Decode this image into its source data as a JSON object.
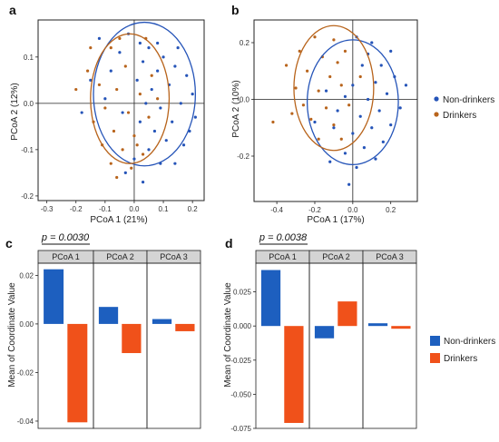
{
  "colors": {
    "nondrinker_point": "#2554b8",
    "drinker_point": "#b8641c",
    "nondrinker_bar": "#1d5fbf",
    "drinker_bar": "#f0511a",
    "panel_header_bg": "#d4d4d4"
  },
  "legends": {
    "top": [
      {
        "label": "Non-drinkers",
        "color_key": "nondrinker_point",
        "shape": "dot"
      },
      {
        "label": "Drinkers",
        "color_key": "drinker_point",
        "shape": "dot"
      }
    ],
    "bottom": [
      {
        "label": "Non-drinkers",
        "color_key": "nondrinker_bar",
        "shape": "square"
      },
      {
        "label": "Drinkers",
        "color_key": "drinker_bar",
        "shape": "square"
      }
    ]
  },
  "chart_data": [
    {
      "panel": "a",
      "type": "scatter",
      "xlabel": "PCoA 1 (21%)",
      "ylabel": "PCoA 2 (12%)",
      "xlim": [
        -0.33,
        0.24
      ],
      "ylim": [
        -0.21,
        0.18
      ],
      "xticks": [
        -0.3,
        -0.2,
        -0.1,
        0.0,
        0.1,
        0.2
      ],
      "xtick_labels": [
        "-0.3",
        "-0.2",
        "-0.1",
        "0.0",
        "0.1",
        "0.2"
      ],
      "yticks": [
        -0.2,
        -0.1,
        0.0,
        0.1
      ],
      "ytick_labels": [
        "-0.2",
        "-0.1",
        "0.0",
        "0.1"
      ],
      "ellipses": [
        {
          "group": "nondrinker",
          "cx": 0.035,
          "cy": 0.02,
          "rx": 0.175,
          "ry": 0.155
        },
        {
          "group": "drinker",
          "cx": -0.015,
          "cy": 0.01,
          "rx": 0.135,
          "ry": 0.14
        }
      ],
      "series": [
        {
          "group": "nondrinker",
          "points": [
            [
              -0.12,
              0.14
            ],
            [
              0.02,
              0.13
            ],
            [
              0.05,
              0.12
            ],
            [
              -0.05,
              0.11
            ],
            [
              0.1,
              0.1
            ],
            [
              0.14,
              0.08
            ],
            [
              0.18,
              0.06
            ],
            [
              0.03,
              0.09
            ],
            [
              0.08,
              0.07
            ],
            [
              -0.08,
              0.07
            ],
            [
              0.12,
              0.04
            ],
            [
              0.2,
              0.02
            ],
            [
              0.06,
              0.03
            ],
            [
              0.01,
              0.05
            ],
            [
              -0.15,
              0.05
            ],
            [
              0.16,
              0.0
            ],
            [
              0.09,
              -0.01
            ],
            [
              0.04,
              0.0
            ],
            [
              0.21,
              -0.03
            ],
            [
              0.13,
              -0.04
            ],
            [
              0.07,
              -0.06
            ],
            [
              0.02,
              -0.04
            ],
            [
              -0.04,
              -0.02
            ],
            [
              0.11,
              -0.08
            ],
            [
              0.17,
              -0.09
            ],
            [
              0.05,
              -0.1
            ],
            [
              0.0,
              -0.12
            ],
            [
              0.09,
              -0.13
            ],
            [
              -0.03,
              -0.15
            ],
            [
              0.03,
              -0.17
            ],
            [
              0.14,
              -0.13
            ],
            [
              0.19,
              -0.06
            ],
            [
              -0.1,
              0.01
            ],
            [
              -0.18,
              -0.02
            ],
            [
              0.08,
              0.13
            ],
            [
              -0.02,
              0.15
            ],
            [
              0.15,
              0.12
            ]
          ]
        },
        {
          "group": "drinker",
          "points": [
            [
              -0.15,
              0.12
            ],
            [
              -0.08,
              0.12
            ],
            [
              0.04,
              0.14
            ],
            [
              -0.03,
              0.08
            ],
            [
              0.06,
              0.06
            ],
            [
              -0.12,
              0.04
            ],
            [
              -0.06,
              0.03
            ],
            [
              0.02,
              0.02
            ],
            [
              -0.1,
              -0.01
            ],
            [
              -0.02,
              -0.02
            ],
            [
              0.05,
              -0.03
            ],
            [
              -0.14,
              -0.04
            ],
            [
              -0.07,
              -0.06
            ],
            [
              0.0,
              -0.07
            ],
            [
              -0.11,
              -0.09
            ],
            [
              -0.04,
              -0.1
            ],
            [
              0.03,
              -0.11
            ],
            [
              -0.08,
              -0.13
            ],
            [
              -0.01,
              -0.14
            ],
            [
              -0.06,
              -0.16
            ],
            [
              0.01,
              -0.09
            ],
            [
              -0.16,
              0.07
            ],
            [
              -0.2,
              0.03
            ],
            [
              0.08,
              0.01
            ],
            [
              -0.05,
              0.14
            ]
          ]
        }
      ]
    },
    {
      "panel": "b",
      "type": "scatter",
      "xlabel": "PCoA 1 (17%)",
      "ylabel": "PCoA 2 (10%)",
      "xlim": [
        -0.52,
        0.34
      ],
      "ylim": [
        -0.36,
        0.28
      ],
      "xticks": [
        -0.4,
        -0.2,
        0.0,
        0.2
      ],
      "xtick_labels": [
        "-0.4",
        "-0.2",
        "0.0",
        "0.2"
      ],
      "yticks": [
        -0.2,
        0.0,
        0.2
      ],
      "ytick_labels": [
        "-0.2",
        "0.0",
        "0.2"
      ],
      "ellipses": [
        {
          "group": "nondrinker",
          "cx": 0.0,
          "cy": -0.01,
          "rx": 0.24,
          "ry": 0.22
        },
        {
          "group": "drinker",
          "cx": -0.1,
          "cy": 0.04,
          "rx": 0.21,
          "ry": 0.22
        }
      ],
      "series": [
        {
          "group": "nondrinker",
          "points": [
            [
              0.02,
              0.22
            ],
            [
              0.1,
              0.2
            ],
            [
              0.2,
              0.17
            ],
            [
              0.15,
              0.12
            ],
            [
              0.05,
              0.12
            ],
            [
              0.22,
              0.08
            ],
            [
              0.12,
              0.06
            ],
            [
              0.0,
              0.05
            ],
            [
              0.18,
              0.02
            ],
            [
              0.08,
              0.0
            ],
            [
              -0.04,
              0.01
            ],
            [
              0.25,
              -0.03
            ],
            [
              0.14,
              -0.04
            ],
            [
              0.04,
              -0.06
            ],
            [
              -0.08,
              -0.04
            ],
            [
              0.2,
              -0.09
            ],
            [
              0.1,
              -0.1
            ],
            [
              0.0,
              -0.12
            ],
            [
              -0.1,
              -0.1
            ],
            [
              0.16,
              -0.15
            ],
            [
              0.06,
              -0.17
            ],
            [
              -0.04,
              -0.19
            ],
            [
              0.12,
              -0.21
            ],
            [
              0.02,
              -0.24
            ],
            [
              -0.12,
              -0.22
            ],
            [
              -0.02,
              -0.3
            ],
            [
              0.28,
              0.05
            ],
            [
              -0.2,
              -0.08
            ],
            [
              0.08,
              0.16
            ],
            [
              -0.14,
              0.03
            ]
          ]
        },
        {
          "group": "drinker",
          "points": [
            [
              -0.2,
              0.22
            ],
            [
              -0.1,
              0.21
            ],
            [
              -0.28,
              0.17
            ],
            [
              -0.16,
              0.15
            ],
            [
              -0.04,
              0.17
            ],
            [
              -0.24,
              0.1
            ],
            [
              -0.12,
              0.08
            ],
            [
              -0.3,
              0.04
            ],
            [
              -0.18,
              0.03
            ],
            [
              -0.06,
              0.05
            ],
            [
              -0.26,
              -0.02
            ],
            [
              -0.14,
              -0.03
            ],
            [
              -0.02,
              -0.02
            ],
            [
              -0.22,
              -0.07
            ],
            [
              -0.1,
              -0.09
            ],
            [
              -0.18,
              -0.14
            ],
            [
              -0.06,
              -0.14
            ],
            [
              -0.42,
              -0.08
            ],
            [
              -0.35,
              0.12
            ],
            [
              0.04,
              0.08
            ],
            [
              -0.08,
              0.13
            ],
            [
              -0.32,
              -0.05
            ]
          ]
        }
      ]
    },
    {
      "panel": "c",
      "type": "bar",
      "pvalue_label": "p = 0.0030",
      "ylabel": "Mean of Coordinate Value",
      "facets": [
        "PCoA 1",
        "PCoA 2",
        "PCoA 3"
      ],
      "ylim": [
        -0.043,
        0.025
      ],
      "yticks": [
        -0.04,
        -0.02,
        0.0,
        0.02
      ],
      "ytick_labels": [
        "-0.04",
        "-0.02",
        "0.00",
        "0.02"
      ],
      "series": [
        {
          "group": "nondrinker",
          "values": [
            0.0225,
            0.007,
            0.002
          ]
        },
        {
          "group": "drinker",
          "values": [
            -0.0405,
            -0.012,
            -0.003
          ]
        }
      ]
    },
    {
      "panel": "d",
      "type": "bar",
      "pvalue_label": "p = 0.0038",
      "ylabel": "Mean of Coordinate Value",
      "facets": [
        "PCoA 1",
        "PCoA 2",
        "PCoA 3"
      ],
      "ylim": [
        -0.075,
        0.046
      ],
      "yticks": [
        -0.075,
        -0.05,
        -0.025,
        0.0,
        0.025
      ],
      "ytick_labels": [
        "-0.075",
        "-0.050",
        "-0.025",
        "0.000",
        "0.025"
      ],
      "series": [
        {
          "group": "nondrinker",
          "values": [
            0.041,
            -0.009,
            0.002
          ]
        },
        {
          "group": "drinker",
          "values": [
            -0.071,
            0.018,
            -0.002
          ]
        }
      ]
    }
  ]
}
